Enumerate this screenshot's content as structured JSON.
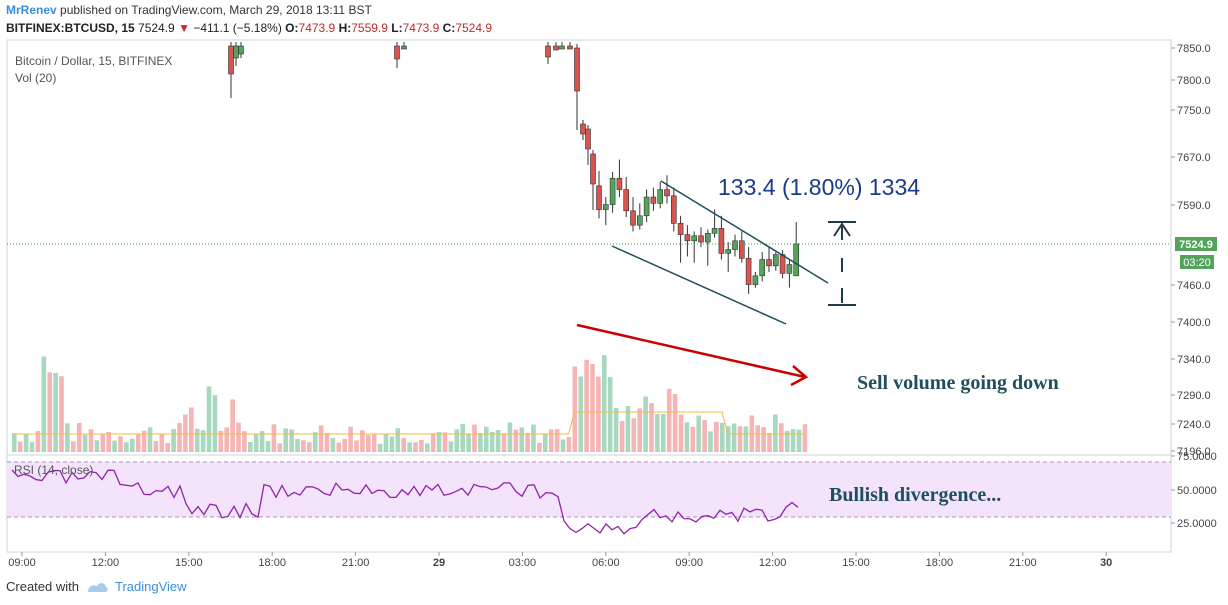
{
  "header": {
    "author": "MrRenev",
    "published_text": "published on TradingView.com, March 29, 2018 13:11 BST",
    "symbol": "BITFINEX:BTCUSD, 15",
    "last_price": "7524.9",
    "change": "−411.1 (−5.18%)",
    "ohlc": {
      "o_label": "O:",
      "o": "7473.9",
      "h_label": "H:",
      "h": "7559.9",
      "l_label": "L:",
      "l": "7473.9",
      "c_label": "C:",
      "c": "7524.9"
    }
  },
  "legend": {
    "title": "Bitcoin / Dollar, 15, BITFINEX",
    "volume": "Vol (20)",
    "rsi": "RSI (14, close)"
  },
  "price_badge": "7524.9",
  "countdown_badge": "03:20",
  "annotations": {
    "measure": "133.4 (1.80%) 1334",
    "sell_volume": "Sell volume going down",
    "bullish": "Bullish divergence..."
  },
  "footer": {
    "created_with": "Created with",
    "brand": "TradingView"
  },
  "colors": {
    "up": "#53a35a",
    "down": "#d9534f",
    "up_vol": "#a8d8bf",
    "down_vol": "#f5b5b5",
    "rsi_line": "#8e24aa",
    "rsi_band": "#f3e3fb",
    "channel": "#1f4e5c",
    "arrow": "#cc0000",
    "measure": "#1a3a8a",
    "annotation": "#1f4e5c"
  },
  "chart_data": {
    "type": "candlestick",
    "price_axis_ticks": [
      "7850.0",
      "7800.0",
      "7750.0",
      "7670.0",
      "7590.0",
      "7524.9",
      "7460.0",
      "7400.0",
      "7340.0",
      "7290.0",
      "7240.0",
      "7196.0"
    ],
    "rsi_axis_ticks": [
      "75.0000",
      "50.0000",
      "25.0000"
    ],
    "x_tick_labels": [
      "09:00",
      "12:00",
      "15:00",
      "18:00",
      "21:00",
      "29",
      "03:00",
      "06:00",
      "09:00",
      "12:00",
      "15:00",
      "18:00",
      "21:00",
      "30"
    ],
    "rsi_levels": [
      70,
      30
    ],
    "candles": [
      {
        "o": 7618,
        "h": 7642,
        "l": 7566,
        "c": 7580
      },
      {
        "o": 7580,
        "h": 7600,
        "l": 7555,
        "c": 7588
      },
      {
        "o": 7588,
        "h": 7640,
        "l": 7575,
        "c": 7630
      },
      {
        "o": 7630,
        "h": 7660,
        "l": 7600,
        "c": 7612
      },
      {
        "o": 7612,
        "h": 7632,
        "l": 7568,
        "c": 7578
      },
      {
        "o": 7578,
        "h": 7600,
        "l": 7545,
        "c": 7555
      },
      {
        "o": 7555,
        "h": 7590,
        "l": 7548,
        "c": 7570
      },
      {
        "o": 7570,
        "h": 7612,
        "l": 7560,
        "c": 7600
      },
      {
        "o": 7600,
        "h": 7615,
        "l": 7578,
        "c": 7590
      },
      {
        "o": 7590,
        "h": 7625,
        "l": 7582,
        "c": 7612
      },
      {
        "o": 7612,
        "h": 7635,
        "l": 7590,
        "c": 7602
      },
      {
        "o": 7602,
        "h": 7615,
        "l": 7545,
        "c": 7558
      },
      {
        "o": 7558,
        "h": 7570,
        "l": 7495,
        "c": 7540
      },
      {
        "o": 7540,
        "h": 7555,
        "l": 7505,
        "c": 7530
      },
      {
        "o": 7530,
        "h": 7545,
        "l": 7495,
        "c": 7538
      },
      {
        "o": 7538,
        "h": 7552,
        "l": 7520,
        "c": 7528
      },
      {
        "o": 7528,
        "h": 7548,
        "l": 7490,
        "c": 7542
      },
      {
        "o": 7542,
        "h": 7580,
        "l": 7535,
        "c": 7550
      },
      {
        "o": 7550,
        "h": 7570,
        "l": 7500,
        "c": 7510
      },
      {
        "o": 7510,
        "h": 7528,
        "l": 7480,
        "c": 7516
      },
      {
        "o": 7516,
        "h": 7540,
        "l": 7505,
        "c": 7530
      },
      {
        "o": 7530,
        "h": 7545,
        "l": 7495,
        "c": 7502
      },
      {
        "o": 7502,
        "h": 7520,
        "l": 7445,
        "c": 7460
      },
      {
        "o": 7460,
        "h": 7480,
        "l": 7455,
        "c": 7474
      },
      {
        "o": 7474,
        "h": 7512,
        "l": 7465,
        "c": 7500
      },
      {
        "o": 7500,
        "h": 7520,
        "l": 7480,
        "c": 7490
      },
      {
        "o": 7490,
        "h": 7512,
        "l": 7482,
        "c": 7508
      },
      {
        "o": 7508,
        "h": 7515,
        "l": 7470,
        "c": 7478
      },
      {
        "o": 7478,
        "h": 7500,
        "l": 7455,
        "c": 7492
      },
      {
        "o": 7474,
        "h": 7560,
        "l": 7474,
        "c": 7525
      }
    ]
  }
}
